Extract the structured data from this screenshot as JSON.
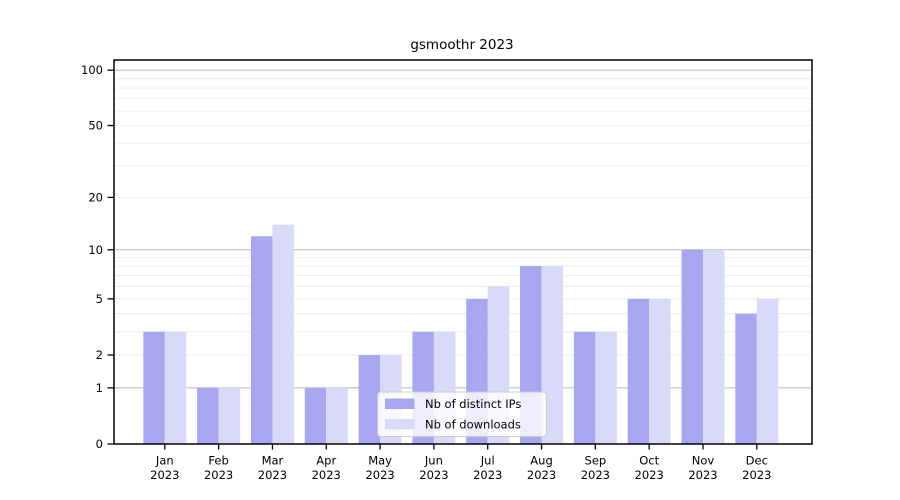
{
  "chart_data": {
    "type": "bar",
    "title": "gsmoothr 2023",
    "categories": [
      "Jan",
      "Feb",
      "Mar",
      "Apr",
      "May",
      "Jun",
      "Jul",
      "Aug",
      "Sep",
      "Oct",
      "Nov",
      "Dec"
    ],
    "category_year": "2023",
    "series": [
      {
        "name": "Nb of distinct IPs",
        "color": "#a7a7f0",
        "values": [
          3,
          1,
          12,
          1,
          2,
          3,
          5,
          8,
          3,
          5,
          10,
          4
        ]
      },
      {
        "name": "Nb of downloads",
        "color": "#d9d9f8",
        "values": [
          3,
          1,
          14,
          1,
          2,
          3,
          6,
          8,
          3,
          5,
          10,
          5
        ]
      }
    ],
    "xlabel": "",
    "ylabel": "",
    "yscale": "log1p",
    "ylim": [
      0,
      118
    ],
    "yticks": [
      0,
      1,
      2,
      5,
      10,
      20,
      50,
      100
    ],
    "major_gridlines": [
      1,
      10,
      100
    ],
    "minor_gridlines": [
      2,
      3,
      4,
      5,
      6,
      7,
      8,
      9,
      20,
      30,
      40,
      50,
      60,
      70,
      80,
      90
    ],
    "grid": true,
    "legend_position": "lower center",
    "colors": {
      "axis": "#000000",
      "major_grid": "#b8b8b8",
      "minor_grid": "#ececec",
      "legend_bg": "rgba(255,255,255,0.8)",
      "legend_border": "#cccccc"
    }
  }
}
